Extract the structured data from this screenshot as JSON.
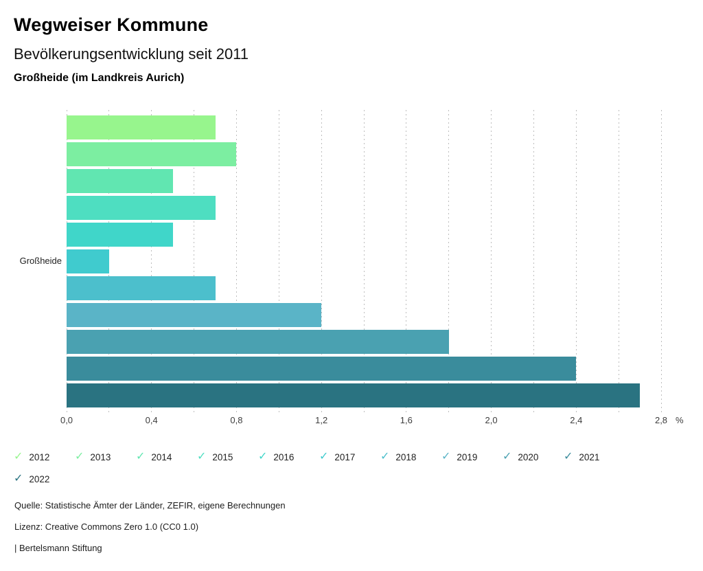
{
  "header": {
    "title": "Wegweiser Kommune",
    "subtitle": "Bevölkerungsentwicklung seit 2011",
    "region": "Großheide (im Landkreis Aurich)"
  },
  "chart_data": {
    "type": "bar",
    "orientation": "horizontal",
    "title": "Bevölkerungsentwicklung seit 2011",
    "group_label": "Großheide",
    "unit": "%",
    "xlim": [
      0,
      2.8
    ],
    "grid_step": 0.2,
    "x_tick_step": 0.4,
    "x_tick_labels": [
      "0,0",
      "0,4",
      "0,8",
      "1,2",
      "1,6",
      "2,0",
      "2,4",
      "2,8"
    ],
    "legend_position": "bottom",
    "series": [
      {
        "name": "2012",
        "value": 0.7,
        "color": "#97f58d"
      },
      {
        "name": "2013",
        "value": 0.8,
        "color": "#7ceea1"
      },
      {
        "name": "2014",
        "value": 0.5,
        "color": "#61e6b1"
      },
      {
        "name": "2015",
        "value": 0.7,
        "color": "#4edec1"
      },
      {
        "name": "2016",
        "value": 0.5,
        "color": "#40d6c9"
      },
      {
        "name": "2017",
        "value": 0.2,
        "color": "#40cbce"
      },
      {
        "name": "2018",
        "value": 0.7,
        "color": "#4cbfcc"
      },
      {
        "name": "2019",
        "value": 1.2,
        "color": "#5ab4c7"
      },
      {
        "name": "2020",
        "value": 1.8,
        "color": "#4aa1b1"
      },
      {
        "name": "2021",
        "value": 2.4,
        "color": "#3a8c9c"
      },
      {
        "name": "2022",
        "value": 2.7,
        "color": "#2a7381"
      }
    ],
    "legend_check_glyph": "✓"
  },
  "footer": {
    "source": "Quelle: Statistische Ämter der Länder, ZEFIR, eigene Berechnungen",
    "license": "Lizenz: Creative Commons Zero 1.0 (CC0 1.0)",
    "publisher": "| Bertelsmann Stiftung"
  }
}
